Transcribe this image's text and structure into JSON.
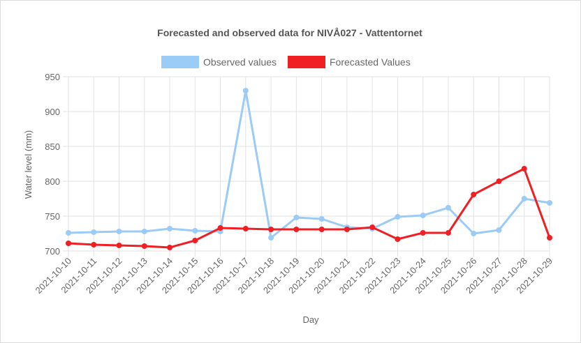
{
  "chart_data": {
    "type": "line",
    "title": "Forecasted and observed data for NIVÅ027 - Vattentornet",
    "xlabel": "Day",
    "ylabel": "Water level (mm)",
    "ylim": [
      700,
      950
    ],
    "yticks": [
      700,
      750,
      800,
      850,
      900,
      950
    ],
    "grid": true,
    "legend_position": "top-center",
    "categories": [
      "2021-10-10",
      "2021-10-11",
      "2021-10-12",
      "2021-10-13",
      "2021-10-14",
      "2021-10-15",
      "2021-10-16",
      "2021-10-17",
      "2021-10-18",
      "2021-10-19",
      "2021-10-20",
      "2021-10-21",
      "2021-10-22",
      "2021-10-23",
      "2021-10-24",
      "2021-10-25",
      "2021-10-26",
      "2021-10-27",
      "2021-10-28",
      "2021-10-29"
    ],
    "series": [
      {
        "name": "Observed values",
        "color": "#9bcbf7",
        "values": [
          726,
          727,
          728,
          728,
          732,
          729,
          728,
          930,
          719,
          748,
          746,
          734,
          732,
          749,
          751,
          762,
          725,
          730,
          775,
          769
        ]
      },
      {
        "name": "Forecasted Values",
        "color": "#ef1f24",
        "values": [
          711,
          709,
          708,
          707,
          705,
          715,
          733,
          732,
          731,
          731,
          731,
          731,
          734,
          717,
          726,
          726,
          781,
          800,
          818,
          719
        ]
      }
    ]
  }
}
